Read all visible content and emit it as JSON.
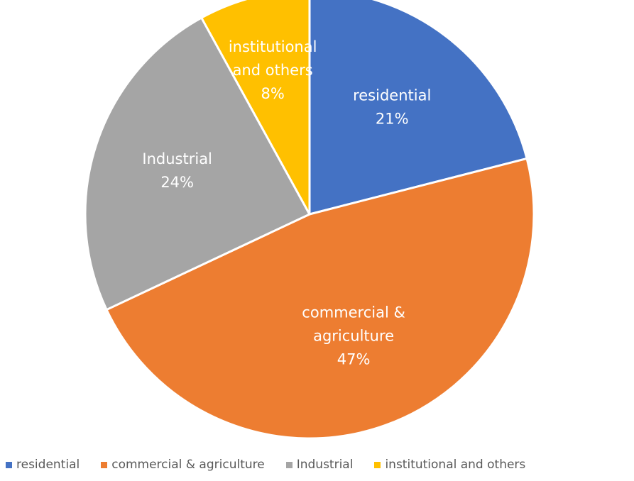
{
  "chart_data": {
    "type": "pie",
    "title": "",
    "categories": [
      "residential",
      "commercial & agriculture",
      "Industrial",
      "institutional and others"
    ],
    "values": [
      21,
      47,
      24,
      8
    ],
    "value_labels": [
      "21%",
      "47%",
      "24%",
      "8%"
    ],
    "slice_labels": [
      [
        "residential"
      ],
      [
        "commercial &",
        "agriculture"
      ],
      [
        "Industrial"
      ],
      [
        "institutional",
        "and others"
      ]
    ],
    "colors": [
      "#4472C4",
      "#ED7D31",
      "#A5A5A5",
      "#FFC000"
    ],
    "legend_position": "bottom",
    "start_angle": "12 o'clock",
    "direction": "clockwise"
  }
}
